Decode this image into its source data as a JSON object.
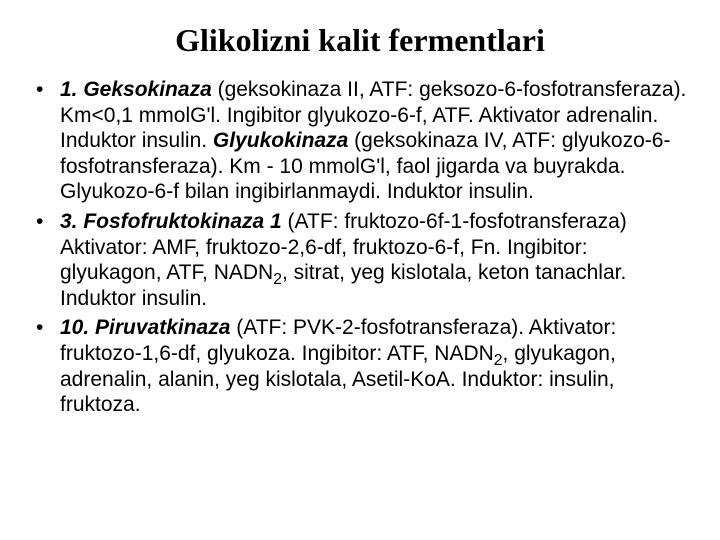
{
  "slide": {
    "title": "Glikolizni kalit  fermentlari",
    "bullets": [
      {
        "lead": "1. Geksokinaza",
        "body1": " (geksokinaza II, ATF: geksozo-6-fosfotransferaza). Km<0,1 mmolG'l. Ingibitor glyukozo-6-f, ATF. Aktivator adrenalin. Induktor insulin. ",
        "em2": "Glyukokinaza",
        "body2": " (geksokinaza IV, ATF: glyukozo-6-fosfotransferaza). Km - 10 mmolG'l, faol jigarda va buyrakda. Glyukozo-6-f bilan ingibirlanmaydi. Induktor insulin."
      },
      {
        "lead": "3. Fosfofruktokinaza 1",
        "body1": " (ATF: fruktozo-6f-1-fosfotransferaza) Aktivator: AMF, fruktozo-2,6-df, fruktozo-6-f, Fn. Ingibitor: glyukagon, ATF, NADN",
        "sub1": "2",
        "body2": ", sitrat, yeg kislotala, keton tanachlar. Induktor insulin."
      },
      {
        "lead": "10. Piruvatkinaza",
        "body1": " (ATF: PVK-2-fosfotransferaza). Aktivator: fruktozo-1,6-df, glyukoza. Ingibitor: ATF, NADN",
        "sub1": "2",
        "body2": ", glyukagon, adrenalin, alanin, yeg kislotala, Asetil-KoA. Induktor: insulin, fruktoza."
      }
    ]
  }
}
